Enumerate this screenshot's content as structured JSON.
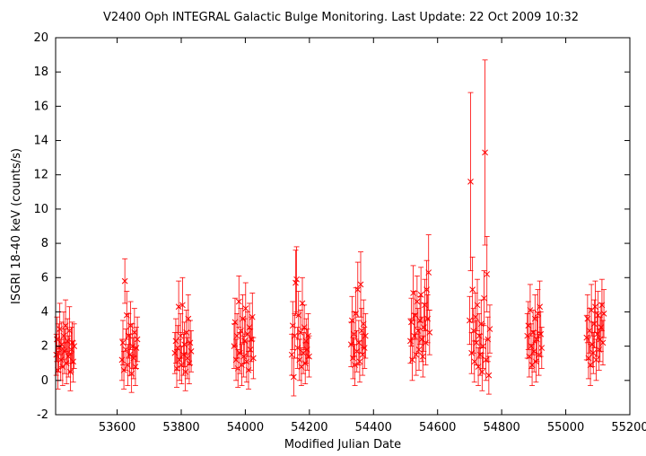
{
  "chart_data": {
    "type": "scatter",
    "title": "V2400 Oph   INTEGRAL Galactic Bulge Monitoring.  Last Update: 22 Oct 2009 10:32",
    "xlabel": "Modified Julian Date",
    "ylabel": "ISGRI 18-40 keV (counts/s)",
    "xlim": [
      53408,
      55200
    ],
    "ylim": [
      -2,
      20
    ],
    "xticks": [
      53600,
      53800,
      54000,
      54200,
      54400,
      54600,
      54800,
      55000,
      55200
    ],
    "yticks": [
      -2,
      0,
      2,
      4,
      6,
      8,
      10,
      12,
      14,
      16,
      18,
      20
    ],
    "grid": false,
    "legend": "none",
    "marker": "x",
    "error_bars": true,
    "color": "#ff0000",
    "series": [
      {
        "points": [
          {
            "x": 53410,
            "y": 1.5,
            "err": 1.2
          },
          {
            "x": 53412,
            "y": 2.4,
            "err": 1.3
          },
          {
            "x": 53415,
            "y": 0.6,
            "err": 1.1
          },
          {
            "x": 53418,
            "y": 1.9,
            "err": 1.4
          },
          {
            "x": 53421,
            "y": 3.0,
            "err": 1.5
          },
          {
            "x": 53424,
            "y": 1.2,
            "err": 1.2
          },
          {
            "x": 53427,
            "y": 2.1,
            "err": 1.3
          },
          {
            "x": 53430,
            "y": 0.8,
            "err": 1.1
          },
          {
            "x": 53433,
            "y": 2.6,
            "err": 1.4
          },
          {
            "x": 53436,
            "y": 1.7,
            "err": 1.3
          },
          {
            "x": 53439,
            "y": 3.2,
            "err": 1.5
          },
          {
            "x": 53442,
            "y": 1.0,
            "err": 1.2
          },
          {
            "x": 53445,
            "y": 2.3,
            "err": 1.3
          },
          {
            "x": 53448,
            "y": 1.4,
            "err": 1.2
          },
          {
            "x": 53451,
            "y": 2.9,
            "err": 1.4
          },
          {
            "x": 53454,
            "y": 0.5,
            "err": 1.1
          },
          {
            "x": 53457,
            "y": 1.8,
            "err": 1.3
          },
          {
            "x": 53460,
            "y": 2.2,
            "err": 1.2
          },
          {
            "x": 53463,
            "y": 1.1,
            "err": 1.2
          },
          {
            "x": 53466,
            "y": 2.0,
            "err": 1.3
          },
          {
            "x": 53615,
            "y": 1.2,
            "err": 1.2
          },
          {
            "x": 53618,
            "y": 2.2,
            "err": 1.3
          },
          {
            "x": 53621,
            "y": 0.6,
            "err": 1.1
          },
          {
            "x": 53624,
            "y": 5.8,
            "err": 1.3
          },
          {
            "x": 53627,
            "y": 1.8,
            "err": 1.2
          },
          {
            "x": 53630,
            "y": 3.8,
            "err": 1.4
          },
          {
            "x": 53633,
            "y": 0.9,
            "err": 1.2
          },
          {
            "x": 53636,
            "y": 2.6,
            "err": 1.3
          },
          {
            "x": 53639,
            "y": 1.5,
            "err": 1.2
          },
          {
            "x": 53642,
            "y": 3.2,
            "err": 1.4
          },
          {
            "x": 53645,
            "y": 0.4,
            "err": 1.1
          },
          {
            "x": 53648,
            "y": 2.0,
            "err": 1.3
          },
          {
            "x": 53651,
            "y": 1.3,
            "err": 1.2
          },
          {
            "x": 53654,
            "y": 2.8,
            "err": 1.4
          },
          {
            "x": 53657,
            "y": 0.8,
            "err": 1.1
          },
          {
            "x": 53660,
            "y": 1.9,
            "err": 1.2
          },
          {
            "x": 53663,
            "y": 2.4,
            "err": 1.3
          },
          {
            "x": 53780,
            "y": 1.6,
            "err": 1.2
          },
          {
            "x": 53783,
            "y": 2.3,
            "err": 1.3
          },
          {
            "x": 53786,
            "y": 0.7,
            "err": 1.1
          },
          {
            "x": 53789,
            "y": 1.9,
            "err": 1.3
          },
          {
            "x": 53792,
            "y": 4.3,
            "err": 1.5
          },
          {
            "x": 53795,
            "y": 1.2,
            "err": 1.2
          },
          {
            "x": 53798,
            "y": 2.6,
            "err": 1.3
          },
          {
            "x": 53801,
            "y": 0.9,
            "err": 1.1
          },
          {
            "x": 53804,
            "y": 4.4,
            "err": 1.6
          },
          {
            "x": 53807,
            "y": 1.5,
            "err": 1.2
          },
          {
            "x": 53810,
            "y": 2.1,
            "err": 1.3
          },
          {
            "x": 53813,
            "y": 0.5,
            "err": 1.1
          },
          {
            "x": 53816,
            "y": 2.8,
            "err": 1.3
          },
          {
            "x": 53819,
            "y": 1.3,
            "err": 1.2
          },
          {
            "x": 53822,
            "y": 3.6,
            "err": 1.4
          },
          {
            "x": 53825,
            "y": 1.0,
            "err": 1.2
          },
          {
            "x": 53828,
            "y": 2.2,
            "err": 1.3
          },
          {
            "x": 53831,
            "y": 1.7,
            "err": 1.2
          },
          {
            "x": 53965,
            "y": 2.0,
            "err": 1.3
          },
          {
            "x": 53968,
            "y": 3.4,
            "err": 1.4
          },
          {
            "x": 53971,
            "y": 1.2,
            "err": 1.2
          },
          {
            "x": 53974,
            "y": 2.6,
            "err": 1.3
          },
          {
            "x": 53977,
            "y": 0.7,
            "err": 1.1
          },
          {
            "x": 53980,
            "y": 4.6,
            "err": 1.5
          },
          {
            "x": 53983,
            "y": 1.6,
            "err": 1.2
          },
          {
            "x": 53986,
            "y": 2.9,
            "err": 1.3
          },
          {
            "x": 53989,
            "y": 0.9,
            "err": 1.2
          },
          {
            "x": 53992,
            "y": 3.6,
            "err": 1.4
          },
          {
            "x": 53995,
            "y": 1.4,
            "err": 1.2
          },
          {
            "x": 53998,
            "y": 2.3,
            "err": 1.3
          },
          {
            "x": 54001,
            "y": 4.2,
            "err": 1.5
          },
          {
            "x": 54004,
            "y": 1.1,
            "err": 1.2
          },
          {
            "x": 54007,
            "y": 2.7,
            "err": 1.3
          },
          {
            "x": 54010,
            "y": 0.6,
            "err": 1.1
          },
          {
            "x": 54013,
            "y": 3.1,
            "err": 1.4
          },
          {
            "x": 54016,
            "y": 1.8,
            "err": 1.2
          },
          {
            "x": 54019,
            "y": 2.4,
            "err": 1.3
          },
          {
            "x": 54022,
            "y": 3.7,
            "err": 1.4
          },
          {
            "x": 54025,
            "y": 1.3,
            "err": 1.2
          },
          {
            "x": 54145,
            "y": 1.5,
            "err": 1.2
          },
          {
            "x": 54148,
            "y": 3.2,
            "err": 1.4
          },
          {
            "x": 54151,
            "y": 0.2,
            "err": 1.1
          },
          {
            "x": 54154,
            "y": 2.6,
            "err": 1.3
          },
          {
            "x": 54157,
            "y": 5.7,
            "err": 1.9
          },
          {
            "x": 54160,
            "y": 5.9,
            "err": 1.9
          },
          {
            "x": 54163,
            "y": 1.9,
            "err": 1.2
          },
          {
            "x": 54166,
            "y": 3.8,
            "err": 1.4
          },
          {
            "x": 54169,
            "y": 1.2,
            "err": 1.2
          },
          {
            "x": 54172,
            "y": 2.8,
            "err": 1.3
          },
          {
            "x": 54175,
            "y": 0.8,
            "err": 1.1
          },
          {
            "x": 54178,
            "y": 4.5,
            "err": 1.5
          },
          {
            "x": 54181,
            "y": 1.6,
            "err": 1.2
          },
          {
            "x": 54184,
            "y": 3.1,
            "err": 1.3
          },
          {
            "x": 54187,
            "y": 1.0,
            "err": 1.2
          },
          {
            "x": 54190,
            "y": 2.3,
            "err": 1.3
          },
          {
            "x": 54193,
            "y": 1.8,
            "err": 1.2
          },
          {
            "x": 54196,
            "y": 2.6,
            "err": 1.3
          },
          {
            "x": 54199,
            "y": 1.4,
            "err": 1.2
          },
          {
            "x": 54330,
            "y": 2.1,
            "err": 1.3
          },
          {
            "x": 54333,
            "y": 3.5,
            "err": 1.4
          },
          {
            "x": 54336,
            "y": 1.3,
            "err": 1.2
          },
          {
            "x": 54339,
            "y": 2.7,
            "err": 1.3
          },
          {
            "x": 54342,
            "y": 0.9,
            "err": 1.2
          },
          {
            "x": 54345,
            "y": 3.9,
            "err": 1.5
          },
          {
            "x": 54348,
            "y": 1.7,
            "err": 1.2
          },
          {
            "x": 54351,
            "y": 5.3,
            "err": 1.6
          },
          {
            "x": 54354,
            "y": 2.2,
            "err": 1.3
          },
          {
            "x": 54357,
            "y": 1.1,
            "err": 1.2
          },
          {
            "x": 54360,
            "y": 5.6,
            "err": 1.9
          },
          {
            "x": 54363,
            "y": 2.9,
            "err": 1.3
          },
          {
            "x": 54366,
            "y": 1.5,
            "err": 1.2
          },
          {
            "x": 54369,
            "y": 3.3,
            "err": 1.4
          },
          {
            "x": 54372,
            "y": 1.9,
            "err": 1.2
          },
          {
            "x": 54375,
            "y": 2.6,
            "err": 1.3
          },
          {
            "x": 54515,
            "y": 2.3,
            "err": 1.3
          },
          {
            "x": 54518,
            "y": 3.4,
            "err": 1.4
          },
          {
            "x": 54521,
            "y": 1.2,
            "err": 1.2
          },
          {
            "x": 54524,
            "y": 5.1,
            "err": 1.6
          },
          {
            "x": 54527,
            "y": 2.6,
            "err": 1.3
          },
          {
            "x": 54530,
            "y": 3.8,
            "err": 1.4
          },
          {
            "x": 54533,
            "y": 1.5,
            "err": 1.2
          },
          {
            "x": 54536,
            "y": 4.6,
            "err": 1.5
          },
          {
            "x": 54539,
            "y": 2.9,
            "err": 1.3
          },
          {
            "x": 54542,
            "y": 1.8,
            "err": 1.2
          },
          {
            "x": 54545,
            "y": 3.5,
            "err": 1.4
          },
          {
            "x": 54548,
            "y": 5.0,
            "err": 1.6
          },
          {
            "x": 54551,
            "y": 2.4,
            "err": 1.3
          },
          {
            "x": 54554,
            "y": 1.4,
            "err": 1.2
          },
          {
            "x": 54557,
            "y": 3.1,
            "err": 1.4
          },
          {
            "x": 54560,
            "y": 4.4,
            "err": 1.5
          },
          {
            "x": 54563,
            "y": 2.2,
            "err": 1.3
          },
          {
            "x": 54566,
            "y": 5.3,
            "err": 1.7
          },
          {
            "x": 54569,
            "y": 3.6,
            "err": 1.4
          },
          {
            "x": 54572,
            "y": 6.3,
            "err": 2.2
          },
          {
            "x": 54575,
            "y": 2.8,
            "err": 1.3
          },
          {
            "x": 54700,
            "y": 3.5,
            "err": 1.4
          },
          {
            "x": 54703,
            "y": 11.6,
            "err": 5.2
          },
          {
            "x": 54706,
            "y": 1.6,
            "err": 1.2
          },
          {
            "x": 54709,
            "y": 5.3,
            "err": 1.9
          },
          {
            "x": 54712,
            "y": 2.9,
            "err": 1.3
          },
          {
            "x": 54715,
            "y": 1.1,
            "err": 1.2
          },
          {
            "x": 54718,
            "y": 3.7,
            "err": 1.4
          },
          {
            "x": 54721,
            "y": 2.2,
            "err": 1.3
          },
          {
            "x": 54724,
            "y": 4.4,
            "err": 1.5
          },
          {
            "x": 54727,
            "y": 0.8,
            "err": 1.1
          },
          {
            "x": 54730,
            "y": 2.6,
            "err": 1.3
          },
          {
            "x": 54733,
            "y": 1.5,
            "err": 1.2
          },
          {
            "x": 54736,
            "y": 3.3,
            "err": 1.4
          },
          {
            "x": 54739,
            "y": 0.5,
            "err": 1.1
          },
          {
            "x": 54742,
            "y": 2.0,
            "err": 1.3
          },
          {
            "x": 54745,
            "y": 4.8,
            "err": 1.6
          },
          {
            "x": 54748,
            "y": 13.3,
            "err": 5.4
          },
          {
            "x": 54751,
            "y": 1.2,
            "err": 1.2
          },
          {
            "x": 54754,
            "y": 6.2,
            "err": 2.2
          },
          {
            "x": 54757,
            "y": 2.4,
            "err": 1.3
          },
          {
            "x": 54760,
            "y": 0.3,
            "err": 1.1
          },
          {
            "x": 54763,
            "y": 3.0,
            "err": 1.4
          },
          {
            "x": 54880,
            "y": 2.6,
            "err": 1.3
          },
          {
            "x": 54883,
            "y": 3.2,
            "err": 1.4
          },
          {
            "x": 54886,
            "y": 1.4,
            "err": 1.2
          },
          {
            "x": 54889,
            "y": 4.1,
            "err": 1.5
          },
          {
            "x": 54892,
            "y": 2.0,
            "err": 1.3
          },
          {
            "x": 54895,
            "y": 0.9,
            "err": 1.2
          },
          {
            "x": 54898,
            "y": 2.8,
            "err": 1.3
          },
          {
            "x": 54901,
            "y": 1.7,
            "err": 1.2
          },
          {
            "x": 54904,
            "y": 3.6,
            "err": 1.4
          },
          {
            "x": 54907,
            "y": 1.1,
            "err": 1.2
          },
          {
            "x": 54910,
            "y": 2.4,
            "err": 1.3
          },
          {
            "x": 54913,
            "y": 3.9,
            "err": 1.4
          },
          {
            "x": 54916,
            "y": 1.5,
            "err": 1.2
          },
          {
            "x": 54919,
            "y": 4.3,
            "err": 1.5
          },
          {
            "x": 54922,
            "y": 2.7,
            "err": 1.3
          },
          {
            "x": 54925,
            "y": 1.9,
            "err": 1.2
          },
          {
            "x": 55065,
            "y": 2.5,
            "err": 1.3
          },
          {
            "x": 55068,
            "y": 3.6,
            "err": 1.4
          },
          {
            "x": 55071,
            "y": 1.3,
            "err": 1.2
          },
          {
            "x": 55074,
            "y": 2.9,
            "err": 1.3
          },
          {
            "x": 55077,
            "y": 0.9,
            "err": 1.2
          },
          {
            "x": 55080,
            "y": 4.1,
            "err": 1.5
          },
          {
            "x": 55083,
            "y": 2.1,
            "err": 1.3
          },
          {
            "x": 55086,
            "y": 1.6,
            "err": 1.2
          },
          {
            "x": 55089,
            "y": 3.3,
            "err": 1.4
          },
          {
            "x": 55092,
            "y": 4.3,
            "err": 1.5
          },
          {
            "x": 55095,
            "y": 1.2,
            "err": 1.2
          },
          {
            "x": 55098,
            "y": 2.7,
            "err": 1.3
          },
          {
            "x": 55101,
            "y": 3.8,
            "err": 1.4
          },
          {
            "x": 55104,
            "y": 1.8,
            "err": 1.2
          },
          {
            "x": 55107,
            "y": 2.4,
            "err": 1.3
          },
          {
            "x": 55110,
            "y": 3.1,
            "err": 1.4
          },
          {
            "x": 55113,
            "y": 4.4,
            "err": 1.5
          },
          {
            "x": 55116,
            "y": 2.2,
            "err": 1.3
          },
          {
            "x": 55119,
            "y": 3.9,
            "err": 1.4
          }
        ]
      }
    ]
  }
}
